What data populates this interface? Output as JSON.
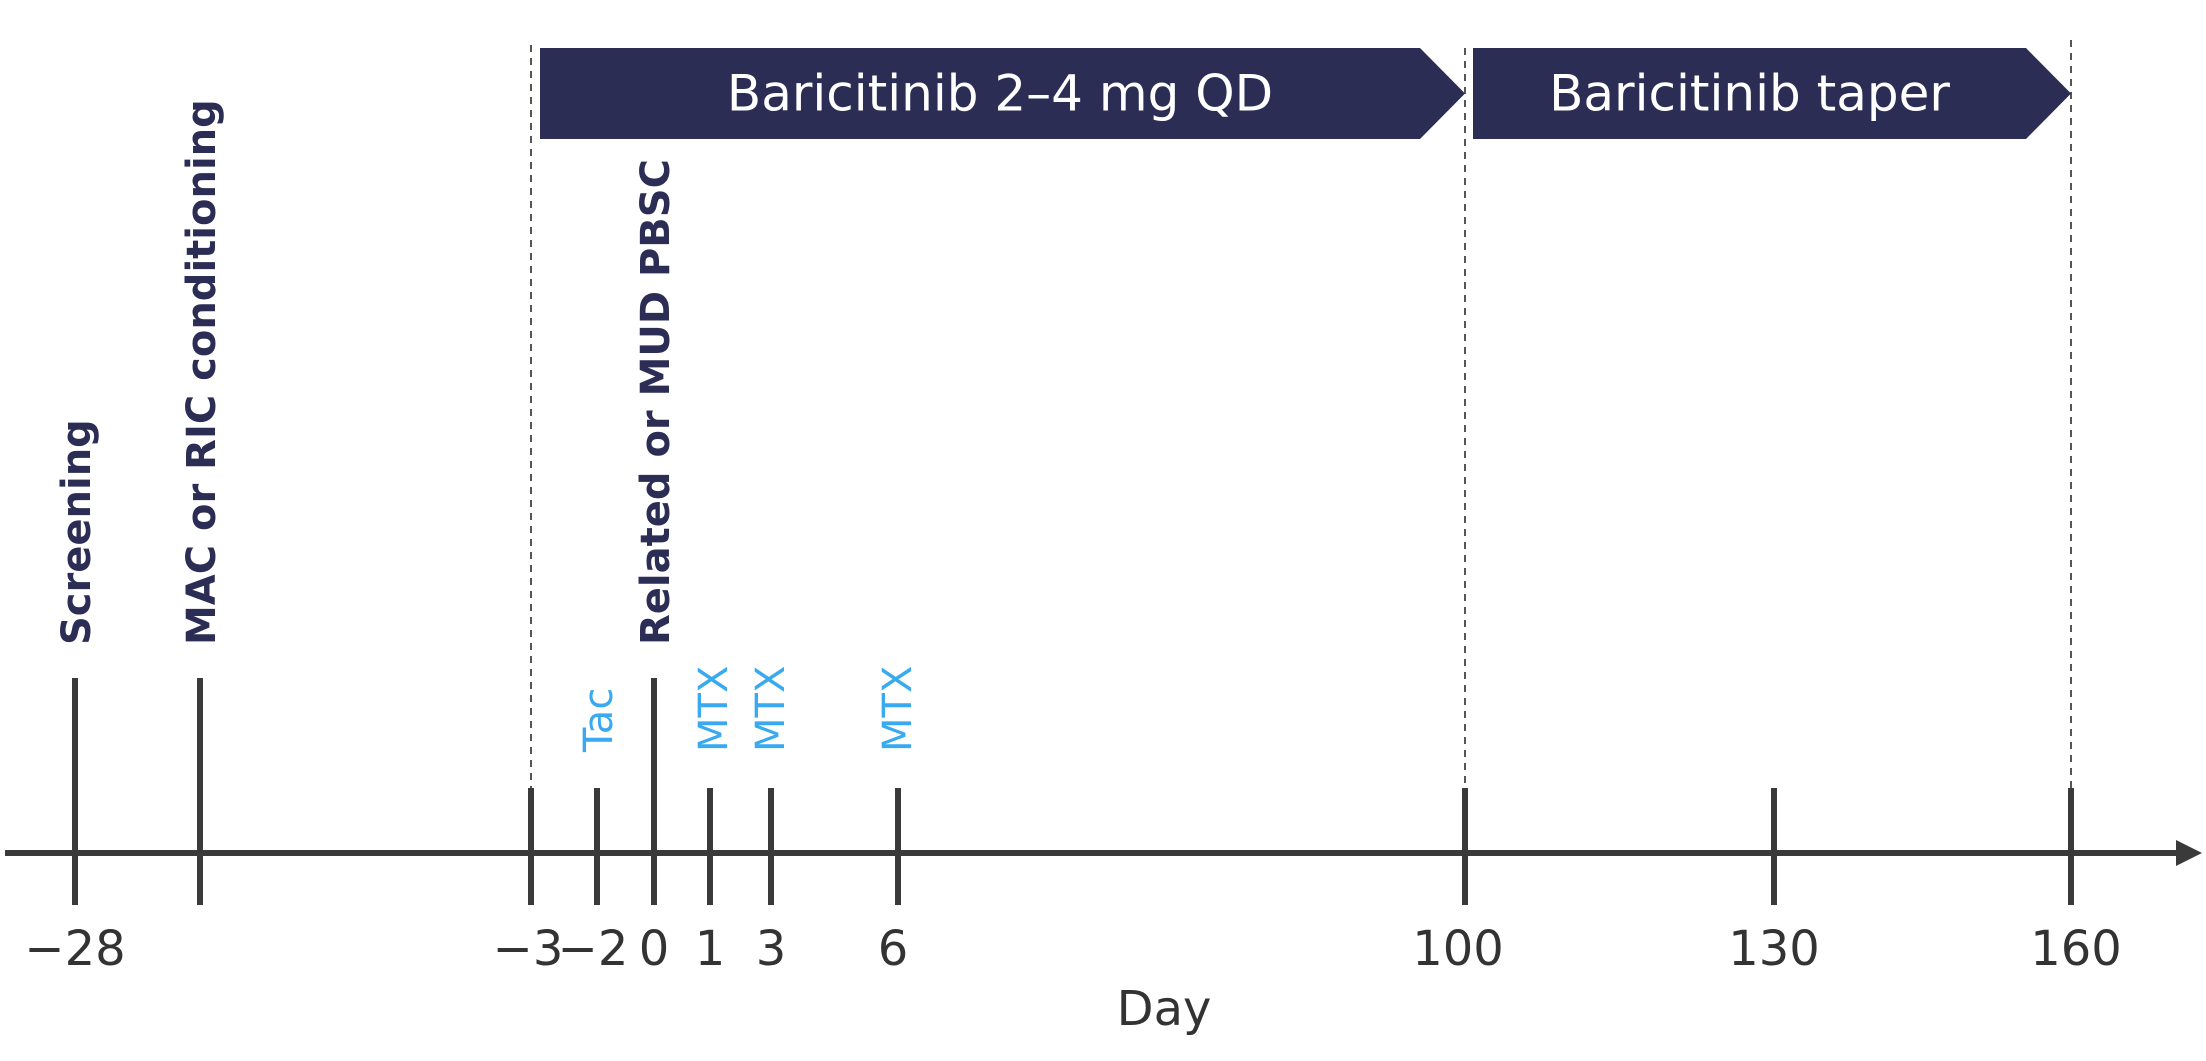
{
  "axis": {
    "label": "Day"
  },
  "colors": {
    "axis": "#3a3a3a",
    "phase_fill": "#2b2d55",
    "phase_text": "#ffffff",
    "event_dark": "#2b2d55",
    "event_blue": "#3aaaf0"
  },
  "ticks": [
    {
      "day": -28,
      "label": "−28"
    },
    {
      "day": -23,
      "label": ""
    },
    {
      "day": -3,
      "label": "−3"
    },
    {
      "day": -2,
      "label": "−2"
    },
    {
      "day": 0,
      "label": "0"
    },
    {
      "day": 1,
      "label": "1"
    },
    {
      "day": 3,
      "label": "3"
    },
    {
      "day": 6,
      "label": "6"
    },
    {
      "day": 100,
      "label": "100"
    },
    {
      "day": 130,
      "label": "130"
    },
    {
      "day": 160,
      "label": "160"
    }
  ],
  "events": [
    {
      "day": -28,
      "label": "Screening",
      "style": "dark"
    },
    {
      "day": -23,
      "label": "MAC or RIC conditioning",
      "style": "dark"
    },
    {
      "day": 0,
      "label": "Related or MUD PBSC",
      "style": "dark"
    },
    {
      "day": -2,
      "label": "Tac",
      "style": "blue"
    },
    {
      "day": 1,
      "label": "MTX",
      "style": "blue"
    },
    {
      "day": 3,
      "label": "MTX",
      "style": "blue"
    },
    {
      "day": 6,
      "label": "MTX",
      "style": "blue"
    }
  ],
  "phases": [
    {
      "label": "Baricitinib 2–4 mg QD",
      "start_day": -3,
      "end_day": 100
    },
    {
      "label": "Baricitinib taper",
      "start_day": 100,
      "end_day": 160
    }
  ],
  "boundaries": [
    -3,
    100,
    160
  ]
}
